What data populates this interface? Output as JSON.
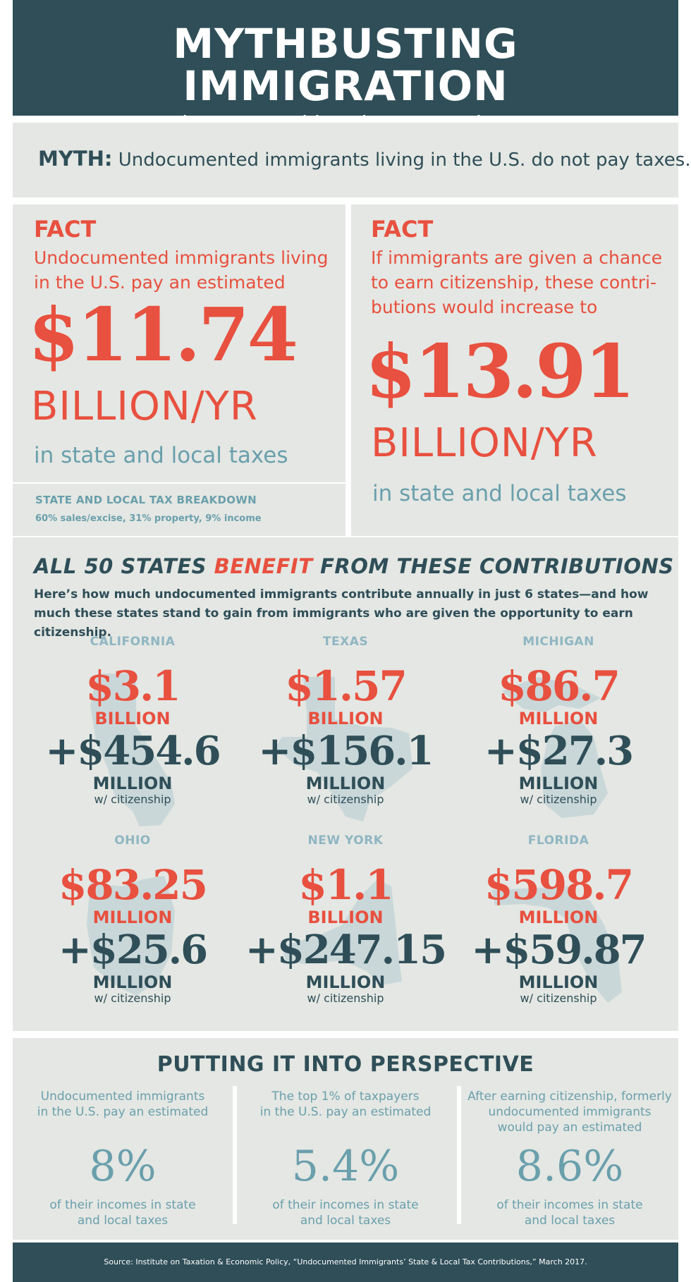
{
  "header": {
    "title": "MYTHBUSTING IMMIGRATION",
    "subtitle": "Undocumented immigrants and taxes"
  },
  "myth": {
    "label": "MYTH:",
    "text": "Undocumented immigrants living in the U.S. do not pay taxes."
  },
  "fact_left": {
    "label": "FACT",
    "line1": "Undocumented immigrants living",
    "line2": "in the U.S. pay an estimated",
    "amount": "$11.74",
    "unit": "BILLION/YR",
    "sub": "in state and local taxes"
  },
  "breakdown": {
    "title": "STATE AND LOCAL TAX BREAKDOWN",
    "values": "60% sales/excise, 31% property, 9% income"
  },
  "fact_right": {
    "label": "FACT",
    "line1": "If immigrants are given a chance",
    "line2": "to earn citizenship, these contri-",
    "line3": "butions would increase to",
    "amount": "$13.91",
    "unit": "BILLION/YR",
    "sub": "in state and local taxes"
  },
  "states_section": {
    "title_pre": "ALL 50 STATES ",
    "title_em": "BENEFIT",
    "title_post": " FROM THESE CONTRIBUTIONS",
    "intro": "Here’s how much undocumented immigrants contribute annually in just 6 states—and how much these states stand to gain from immigrants who are given the opportunity to earn citizenship.",
    "states": [
      {
        "name": "CALIFORNIA",
        "v1": "$3.1",
        "u1": "BILLION",
        "v2": "+$454.6",
        "u2": "MILLION",
        "wc": "w/ citizenship"
      },
      {
        "name": "TEXAS",
        "v1": "$1.57",
        "u1": "BILLION",
        "v2": "+$156.1",
        "u2": "MILLION",
        "wc": "w/ citizenship"
      },
      {
        "name": "MICHIGAN",
        "v1": "$86.7",
        "u1": "MILLION",
        "v2": "+$27.3",
        "u2": "MILLION",
        "wc": "w/ citizenship"
      },
      {
        "name": "OHIO",
        "v1": "$83.25",
        "u1": "MILLION",
        "v2": "+$25.6",
        "u2": "MILLION",
        "wc": "w/ citizenship"
      },
      {
        "name": "NEW YORK",
        "v1": "$1.1",
        "u1": "BILLION",
        "v2": "+$247.15",
        "u2": "MILLION",
        "wc": "w/ citizenship"
      },
      {
        "name": "FLORIDA",
        "v1": "$598.7",
        "u1": "MILLION",
        "v2": "+$59.87",
        "u2": "MILLION",
        "wc": "w/ citizenship"
      }
    ]
  },
  "perspective": {
    "title": "PUTTING IT INTO PERSPECTIVE",
    "columns": [
      {
        "desc1": "Undocumented immigrants",
        "desc2": "in the U.S. pay an estimated",
        "desc3": "",
        "value": "8%",
        "foot1": "of their incomes in state",
        "foot2": "and local taxes"
      },
      {
        "desc1": "The top 1% of taxpayers",
        "desc2": "in the U.S. pay an estimated",
        "desc3": "",
        "value": "5.4%",
        "foot1": "of their incomes in state",
        "foot2": "and local taxes"
      },
      {
        "desc1": "After earning citizenship, formerly",
        "desc2": "undocumented immigrants",
        "desc3": "would pay an estimated",
        "value": "8.6%",
        "foot1": "of their incomes in state",
        "foot2": "and local taxes"
      }
    ]
  },
  "source": "Source: Institute on Taxation & Economic Policy, “Undocumented Immigrants’ State & Local Tax Contributions,” March 2017.",
  "colors": {
    "dark": "#2f4e58",
    "red": "#e8503f",
    "teal": "#6a9fac",
    "panel": "#e4e7e3",
    "state_shape": "#bfd0d3"
  }
}
